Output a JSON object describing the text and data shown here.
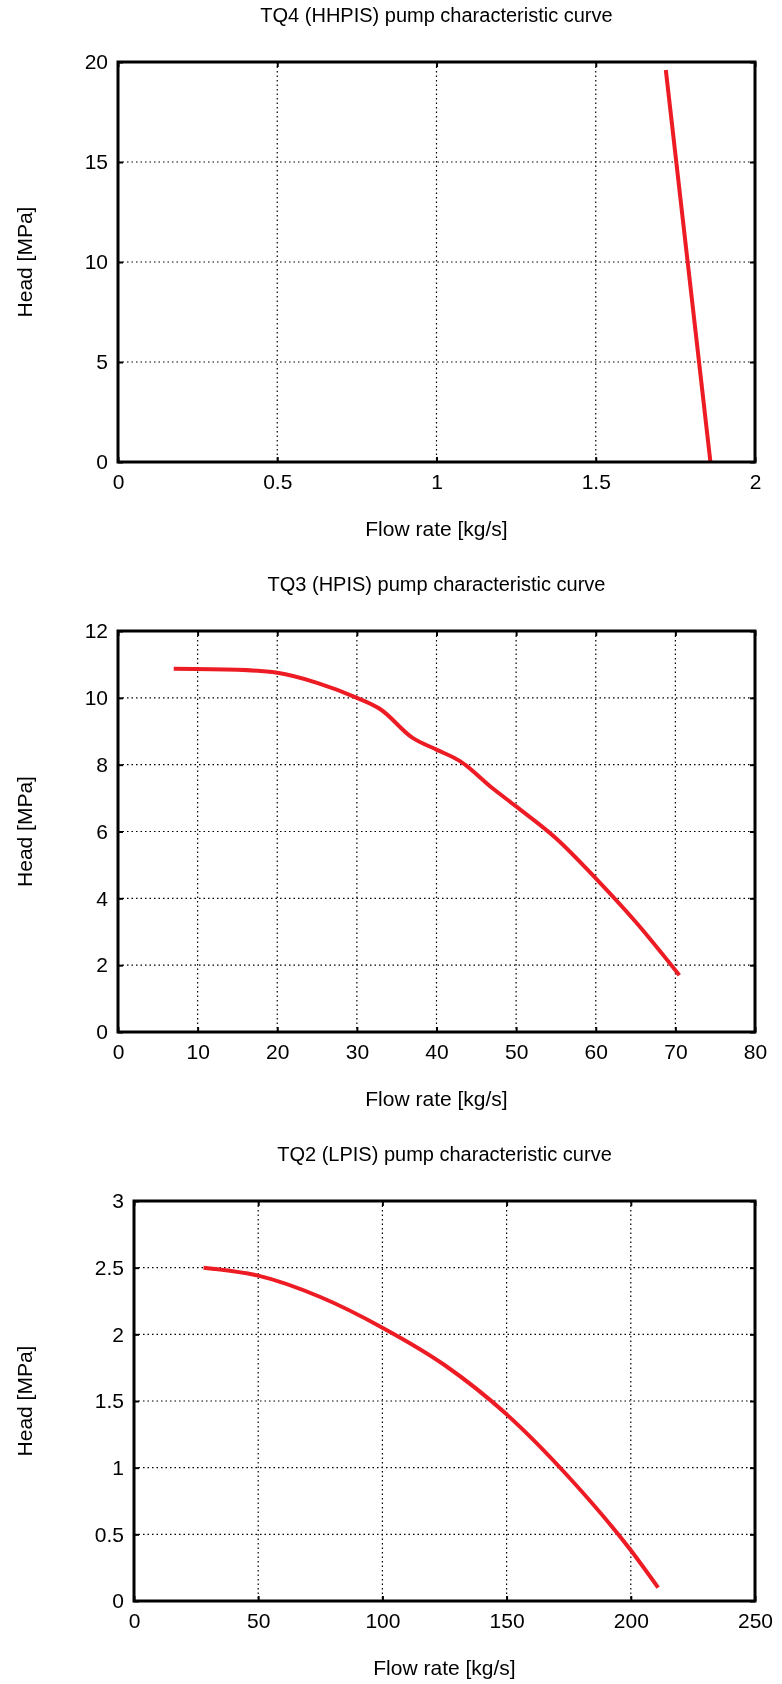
{
  "chart_data": [
    {
      "type": "line",
      "title": "TQ4 (HHPIS) pump characteristic curve",
      "xlabel": "Flow rate [kg/s]",
      "ylabel": "Head [MPa]",
      "xlim": [
        0,
        2
      ],
      "ylim": [
        0,
        20
      ],
      "xticks": [
        0,
        0.5,
        1,
        1.5,
        2
      ],
      "yticks": [
        0,
        5,
        10,
        15,
        20
      ],
      "grid": true,
      "series": [
        {
          "color": "#ed1c24",
          "x": [
            1.72,
            1.86
          ],
          "values": [
            19.6,
            0
          ]
        }
      ]
    },
    {
      "type": "line",
      "title": "TQ3 (HPIS) pump characteristic curve",
      "xlabel": "Flow rate [kg/s]",
      "ylabel": "Head [MPa]",
      "xlim": [
        0,
        80
      ],
      "ylim": [
        0,
        12
      ],
      "xticks": [
        0,
        10,
        20,
        30,
        40,
        50,
        60,
        70,
        80
      ],
      "yticks": [
        0,
        2,
        4,
        6,
        8,
        10,
        12
      ],
      "grid": true,
      "series": [
        {
          "color": "#ed1c24",
          "x": [
            7,
            15,
            20,
            25,
            30,
            33,
            37,
            40,
            43,
            47,
            50,
            55,
            60,
            65,
            70.5
          ],
          "values": [
            10.87,
            10.84,
            10.75,
            10.45,
            10.0,
            9.65,
            8.8,
            8.45,
            8.1,
            7.3,
            6.75,
            5.8,
            4.6,
            3.3,
            1.7
          ]
        }
      ]
    },
    {
      "type": "line",
      "title": "TQ2 (LPIS) pump characteristic curve",
      "xlabel": "Flow rate [kg/s]",
      "ylabel": "Head [MPa]",
      "xlim": [
        0,
        250
      ],
      "ylim": [
        0,
        3
      ],
      "xticks": [
        0,
        50,
        100,
        150,
        200,
        250
      ],
      "yticks": [
        0,
        0.5,
        1,
        1.5,
        2,
        2.5,
        3
      ],
      "grid": true,
      "series": [
        {
          "color": "#ed1c24",
          "x": [
            28,
            50,
            75,
            100,
            125,
            150,
            175,
            200,
            211
          ],
          "values": [
            2.5,
            2.44,
            2.28,
            2.05,
            1.77,
            1.4,
            0.93,
            0.38,
            0.1
          ]
        }
      ]
    }
  ]
}
